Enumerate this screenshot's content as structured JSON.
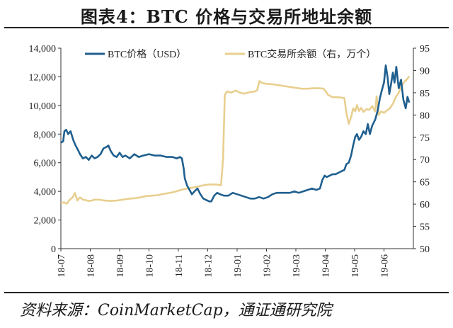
{
  "figure": {
    "title": "图表4：BTC 价格与交易所地址余额",
    "source": "资料来源：CoinMarketCap，通证通研究院"
  },
  "chart_data": {
    "type": "line",
    "x_tick_labels": [
      "18-07",
      "18-08",
      "18-09",
      "18-10",
      "18-11",
      "18-12",
      "19-01",
      "19-02",
      "19-03",
      "19-04",
      "19-05",
      "19-06"
    ],
    "x_range": [
      0,
      12
    ],
    "y_left": {
      "range": [
        0,
        14000
      ],
      "ticks": [
        "0",
        "2,000",
        "4,000",
        "6,000",
        "8,000",
        "10,000",
        "12,000",
        "14,000"
      ]
    },
    "y_right": {
      "range": [
        50,
        95
      ],
      "ticks": [
        "50",
        "55",
        "60",
        "65",
        "70",
        "75",
        "80",
        "85",
        "90",
        "95"
      ]
    },
    "legend_placement": "top",
    "series": [
      {
        "name": "BTC价格（USD）",
        "axis": "left",
        "color": "#1f5f8f",
        "points": [
          [
            0.0,
            7400
          ],
          [
            0.08,
            7500
          ],
          [
            0.12,
            8200
          ],
          [
            0.18,
            8300
          ],
          [
            0.25,
            8000
          ],
          [
            0.33,
            8200
          ],
          [
            0.42,
            7600
          ],
          [
            0.5,
            7200
          ],
          [
            0.58,
            6900
          ],
          [
            0.65,
            6600
          ],
          [
            0.75,
            6300
          ],
          [
            0.85,
            6400
          ],
          [
            0.95,
            6200
          ],
          [
            1.05,
            6500
          ],
          [
            1.15,
            6300
          ],
          [
            1.25,
            6400
          ],
          [
            1.35,
            6600
          ],
          [
            1.45,
            7000
          ],
          [
            1.55,
            7100
          ],
          [
            1.62,
            7200
          ],
          [
            1.7,
            6800
          ],
          [
            1.8,
            6500
          ],
          [
            1.9,
            6400
          ],
          [
            2.0,
            6700
          ],
          [
            2.1,
            6400
          ],
          [
            2.2,
            6500
          ],
          [
            2.35,
            6300
          ],
          [
            2.5,
            6600
          ],
          [
            2.65,
            6400
          ],
          [
            2.8,
            6500
          ],
          [
            3.0,
            6600
          ],
          [
            3.2,
            6500
          ],
          [
            3.4,
            6500
          ],
          [
            3.6,
            6400
          ],
          [
            3.8,
            6400
          ],
          [
            3.95,
            6300
          ],
          [
            4.05,
            6400
          ],
          [
            4.12,
            6300
          ],
          [
            4.18,
            5600
          ],
          [
            4.22,
            4900
          ],
          [
            4.3,
            4400
          ],
          [
            4.38,
            4100
          ],
          [
            4.46,
            3800
          ],
          [
            4.55,
            4000
          ],
          [
            4.65,
            4200
          ],
          [
            4.75,
            3800
          ],
          [
            4.85,
            3500
          ],
          [
            4.95,
            3400
          ],
          [
            5.05,
            3300
          ],
          [
            5.12,
            3300
          ],
          [
            5.22,
            3700
          ],
          [
            5.32,
            3900
          ],
          [
            5.42,
            3800
          ],
          [
            5.55,
            3700
          ],
          [
            5.7,
            3700
          ],
          [
            5.85,
            3900
          ],
          [
            6.0,
            3800
          ],
          [
            6.15,
            3700
          ],
          [
            6.3,
            3600
          ],
          [
            6.45,
            3500
          ],
          [
            6.6,
            3500
          ],
          [
            6.75,
            3600
          ],
          [
            6.9,
            3500
          ],
          [
            7.05,
            3600
          ],
          [
            7.2,
            3800
          ],
          [
            7.35,
            3900
          ],
          [
            7.5,
            3900
          ],
          [
            7.65,
            3900
          ],
          [
            7.8,
            3900
          ],
          [
            7.95,
            4000
          ],
          [
            8.1,
            3900
          ],
          [
            8.25,
            4000
          ],
          [
            8.4,
            4100
          ],
          [
            8.55,
            4200
          ],
          [
            8.7,
            4100
          ],
          [
            8.82,
            4200
          ],
          [
            8.9,
            4800
          ],
          [
            8.98,
            5100
          ],
          [
            9.05,
            5000
          ],
          [
            9.15,
            5100
          ],
          [
            9.25,
            5200
          ],
          [
            9.35,
            5200
          ],
          [
            9.45,
            5300
          ],
          [
            9.55,
            5400
          ],
          [
            9.65,
            5500
          ],
          [
            9.72,
            5900
          ],
          [
            9.8,
            6000
          ],
          [
            9.88,
            6500
          ],
          [
            9.95,
            7200
          ],
          [
            10.02,
            7800
          ],
          [
            10.08,
            8000
          ],
          [
            10.15,
            7600
          ],
          [
            10.22,
            7800
          ],
          [
            10.3,
            8200
          ],
          [
            10.38,
            8000
          ],
          [
            10.45,
            8700
          ],
          [
            10.52,
            8000
          ],
          [
            10.6,
            8600
          ],
          [
            10.7,
            9000
          ],
          [
            10.78,
            9600
          ],
          [
            10.86,
            10500
          ],
          [
            10.92,
            11000
          ],
          [
            11.0,
            11600
          ],
          [
            11.06,
            12800
          ],
          [
            11.12,
            12000
          ],
          [
            11.18,
            10800
          ],
          [
            11.24,
            11500
          ],
          [
            11.3,
            12300
          ],
          [
            11.36,
            11600
          ],
          [
            11.42,
            12700
          ],
          [
            11.5,
            11200
          ],
          [
            11.58,
            11800
          ],
          [
            11.66,
            10400
          ],
          [
            11.74,
            9800
          ],
          [
            11.8,
            10600
          ],
          [
            11.86,
            10200
          ]
        ]
      },
      {
        "name": "BTC交易所余额（右，万个）",
        "axis": "right",
        "color": "#e8cf8f",
        "points": [
          [
            0.0,
            60.2
          ],
          [
            0.1,
            60.4
          ],
          [
            0.2,
            60.1
          ],
          [
            0.3,
            61.0
          ],
          [
            0.4,
            61.5
          ],
          [
            0.48,
            62.5
          ],
          [
            0.56,
            60.8
          ],
          [
            0.65,
            61.5
          ],
          [
            0.75,
            61.0
          ],
          [
            0.85,
            60.9
          ],
          [
            0.95,
            60.7
          ],
          [
            1.05,
            60.8
          ],
          [
            1.15,
            61.0
          ],
          [
            1.3,
            61.0
          ],
          [
            1.5,
            60.8
          ],
          [
            1.7,
            60.7
          ],
          [
            1.9,
            60.8
          ],
          [
            2.1,
            61.0
          ],
          [
            2.3,
            61.2
          ],
          [
            2.5,
            61.3
          ],
          [
            2.7,
            61.5
          ],
          [
            2.9,
            61.8
          ],
          [
            3.1,
            61.9
          ],
          [
            3.3,
            62.0
          ],
          [
            3.5,
            62.3
          ],
          [
            3.7,
            62.5
          ],
          [
            3.9,
            62.8
          ],
          [
            4.1,
            63.2
          ],
          [
            4.3,
            63.5
          ],
          [
            4.5,
            63.7
          ],
          [
            4.7,
            64.0
          ],
          [
            4.9,
            64.3
          ],
          [
            5.1,
            64.4
          ],
          [
            5.3,
            64.4
          ],
          [
            5.45,
            64.2
          ],
          [
            5.52,
            70.0
          ],
          [
            5.58,
            84.5
          ],
          [
            5.66,
            85.3
          ],
          [
            5.8,
            85.0
          ],
          [
            5.95,
            85.5
          ],
          [
            6.1,
            85.0
          ],
          [
            6.25,
            84.8
          ],
          [
            6.4,
            85.1
          ],
          [
            6.55,
            85.2
          ],
          [
            6.68,
            85.5
          ],
          [
            6.76,
            87.6
          ],
          [
            6.85,
            87.2
          ],
          [
            7.0,
            87.0
          ],
          [
            7.2,
            86.9
          ],
          [
            7.4,
            86.7
          ],
          [
            7.6,
            86.5
          ],
          [
            7.8,
            86.3
          ],
          [
            8.0,
            86.1
          ],
          [
            8.2,
            85.9
          ],
          [
            8.4,
            85.9
          ],
          [
            8.6,
            86.0
          ],
          [
            8.8,
            86.0
          ],
          [
            8.95,
            85.9
          ],
          [
            9.1,
            84.5
          ],
          [
            9.25,
            84.0
          ],
          [
            9.4,
            84.0
          ],
          [
            9.55,
            83.9
          ],
          [
            9.65,
            83.8
          ],
          [
            9.72,
            80.5
          ],
          [
            9.8,
            78.0
          ],
          [
            9.88,
            79.5
          ],
          [
            9.95,
            81.5
          ],
          [
            10.02,
            80.8
          ],
          [
            10.08,
            82.2
          ],
          [
            10.15,
            80.9
          ],
          [
            10.22,
            81.6
          ],
          [
            10.3,
            80.7
          ],
          [
            10.4,
            81.3
          ],
          [
            10.5,
            81.2
          ],
          [
            10.6,
            82.0
          ],
          [
            10.7,
            80.8
          ],
          [
            10.75,
            84.2
          ],
          [
            10.82,
            80.0
          ],
          [
            10.9,
            80.8
          ],
          [
            11.0,
            80.5
          ],
          [
            11.1,
            81.0
          ],
          [
            11.2,
            81.5
          ],
          [
            11.3,
            82.5
          ],
          [
            11.4,
            84.0
          ],
          [
            11.5,
            85.0
          ],
          [
            11.6,
            86.5
          ],
          [
            11.7,
            87.5
          ],
          [
            11.78,
            88.0
          ],
          [
            11.86,
            88.7
          ]
        ]
      }
    ]
  }
}
